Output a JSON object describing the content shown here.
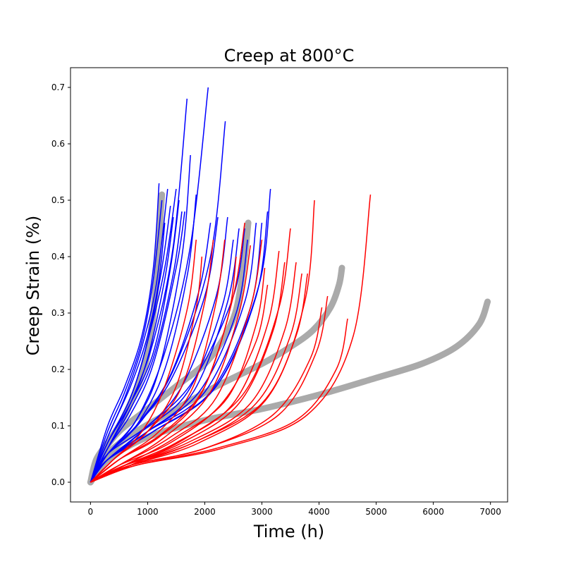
{
  "chart_data": {
    "type": "line",
    "title": "Creep at 800°C",
    "xlabel": "Time (h)",
    "ylabel": "Creep Strain (%)",
    "xlim": [
      -350,
      7300
    ],
    "ylim": [
      -0.035,
      0.735
    ],
    "xticks": [
      0,
      1000,
      2000,
      3000,
      4000,
      5000,
      6000,
      7000
    ],
    "yticks": [
      0.0,
      0.1,
      0.2,
      0.3,
      0.4,
      0.5,
      0.6,
      0.7
    ],
    "xtick_labels": [
      "0",
      "1000",
      "2000",
      "3000",
      "4000",
      "5000",
      "6000",
      "7000"
    ],
    "ytick_labels": [
      "0.0",
      "0.1",
      "0.2",
      "0.3",
      "0.4",
      "0.5",
      "0.6",
      "0.7"
    ],
    "grid": false,
    "legend": false,
    "colors": {
      "experimental": "#aaaaaa",
      "group_a": "#0000ff",
      "group_b": "#ff0000"
    },
    "experimental_series": [
      {
        "color": "#aaaaaa",
        "x": [
          0,
          100,
          300,
          500,
          700,
          900,
          1000,
          1100,
          1150,
          1200,
          1230,
          1250
        ],
        "y": [
          0,
          0.04,
          0.07,
          0.1,
          0.14,
          0.19,
          0.23,
          0.3,
          0.36,
          0.43,
          0.48,
          0.51
        ]
      },
      {
        "color": "#aaaaaa",
        "x": [
          0,
          200,
          500,
          1000,
          1500,
          2000,
          2300,
          2500,
          2600,
          2700,
          2760
        ],
        "y": [
          0,
          0.05,
          0.09,
          0.13,
          0.17,
          0.21,
          0.25,
          0.29,
          0.33,
          0.4,
          0.46
        ]
      },
      {
        "color": "#aaaaaa",
        "x": [
          0,
          300,
          800,
          1500,
          2200,
          3000,
          3500,
          3900,
          4200,
          4350,
          4400
        ],
        "y": [
          0,
          0.05,
          0.09,
          0.13,
          0.17,
          0.21,
          0.24,
          0.27,
          0.31,
          0.35,
          0.38
        ]
      },
      {
        "color": "#aaaaaa",
        "x": [
          0,
          300,
          1000,
          2000,
          3000,
          4000,
          5000,
          5800,
          6400,
          6800,
          6950
        ],
        "y": [
          0,
          0.04,
          0.08,
          0.11,
          0.13,
          0.155,
          0.185,
          0.21,
          0.24,
          0.28,
          0.32
        ]
      }
    ],
    "series": [
      {
        "color": "#0000ff",
        "x": [
          0,
          300,
          600,
          900,
          1100,
          1200
        ],
        "y": [
          0,
          0.1,
          0.17,
          0.26,
          0.38,
          0.53
        ]
      },
      {
        "color": "#0000ff",
        "x": [
          0,
          300,
          600,
          900,
          1100,
          1250
        ],
        "y": [
          0,
          0.09,
          0.16,
          0.25,
          0.36,
          0.5
        ]
      },
      {
        "color": "#0000ff",
        "x": [
          0,
          300,
          600,
          900,
          1150,
          1350
        ],
        "y": [
          0,
          0.08,
          0.15,
          0.24,
          0.35,
          0.52
        ]
      },
      {
        "color": "#0000ff",
        "x": [
          0,
          300,
          700,
          1000,
          1200,
          1300
        ],
        "y": [
          0,
          0.08,
          0.17,
          0.26,
          0.36,
          0.46
        ]
      },
      {
        "color": "#0000ff",
        "x": [
          0,
          300,
          700,
          1000,
          1250,
          1400
        ],
        "y": [
          0,
          0.07,
          0.15,
          0.25,
          0.38,
          0.49
        ]
      },
      {
        "color": "#0000ff",
        "x": [
          0,
          300,
          700,
          1000,
          1300,
          1450
        ],
        "y": [
          0,
          0.07,
          0.14,
          0.22,
          0.36,
          0.47
        ]
      },
      {
        "color": "#0000ff",
        "x": [
          0,
          300,
          700,
          1100,
          1400,
          1550
        ],
        "y": [
          0,
          0.07,
          0.14,
          0.23,
          0.38,
          0.5
        ]
      },
      {
        "color": "#0000ff",
        "x": [
          0,
          300,
          700,
          1100,
          1450,
          1600
        ],
        "y": [
          0,
          0.06,
          0.13,
          0.22,
          0.37,
          0.48
        ]
      },
      {
        "color": "#0000ff",
        "x": [
          0,
          300,
          700,
          1100,
          1500,
          1650
        ],
        "y": [
          0,
          0.06,
          0.12,
          0.21,
          0.38,
          0.48
        ]
      },
      {
        "color": "#0000ff",
        "x": [
          0,
          300,
          700,
          1100,
          1450,
          1690
        ],
        "y": [
          0,
          0.06,
          0.14,
          0.25,
          0.42,
          0.68
        ]
      },
      {
        "color": "#0000ff",
        "x": [
          0,
          300,
          800,
          1200,
          1600,
          1750
        ],
        "y": [
          0,
          0.05,
          0.11,
          0.2,
          0.4,
          0.58
        ]
      },
      {
        "color": "#0000ff",
        "x": [
          0,
          300,
          800,
          1300,
          1700,
          1850
        ],
        "y": [
          0,
          0.05,
          0.1,
          0.2,
          0.37,
          0.51
        ]
      },
      {
        "color": "#0000ff",
        "x": [
          0,
          300,
          800,
          1300,
          1750,
          2060
        ],
        "y": [
          0,
          0.05,
          0.11,
          0.23,
          0.42,
          0.7
        ]
      },
      {
        "color": "#0000ff",
        "x": [
          0,
          300,
          800,
          1400,
          1900,
          2100
        ],
        "y": [
          0,
          0.05,
          0.1,
          0.19,
          0.34,
          0.46
        ]
      },
      {
        "color": "#0000ff",
        "x": [
          0,
          300,
          800,
          1400,
          2000,
          2230
        ],
        "y": [
          0,
          0.05,
          0.1,
          0.18,
          0.33,
          0.47
        ]
      },
      {
        "color": "#0000ff",
        "x": [
          0,
          300,
          900,
          1500,
          2100,
          2360
        ],
        "y": [
          0,
          0.05,
          0.11,
          0.21,
          0.4,
          0.64
        ]
      },
      {
        "color": "#0000ff",
        "x": [
          0,
          300,
          900,
          1600,
          2200,
          2400
        ],
        "y": [
          0,
          0.04,
          0.09,
          0.17,
          0.33,
          0.47
        ]
      },
      {
        "color": "#0000ff",
        "x": [
          0,
          300,
          900,
          1700,
          2300,
          2500
        ],
        "y": [
          0,
          0.04,
          0.09,
          0.16,
          0.31,
          0.43
        ]
      },
      {
        "color": "#0000ff",
        "x": [
          0,
          300,
          1000,
          1800,
          2400,
          2600
        ],
        "y": [
          0,
          0.04,
          0.09,
          0.16,
          0.32,
          0.45
        ]
      },
      {
        "color": "#0000ff",
        "x": [
          0,
          300,
          1000,
          1900,
          2550,
          2750
        ],
        "y": [
          0,
          0.04,
          0.09,
          0.16,
          0.3,
          0.43
        ]
      },
      {
        "color": "#0000ff",
        "x": [
          0,
          300,
          1000,
          2000,
          2700,
          2900
        ],
        "y": [
          0,
          0.04,
          0.09,
          0.16,
          0.32,
          0.46
        ]
      },
      {
        "color": "#0000ff",
        "x": [
          0,
          300,
          1100,
          2100,
          2800,
          3000
        ],
        "y": [
          0,
          0.04,
          0.09,
          0.16,
          0.31,
          0.46
        ]
      },
      {
        "color": "#0000ff",
        "x": [
          0,
          300,
          1100,
          2200,
          2900,
          3100
        ],
        "y": [
          0,
          0.04,
          0.09,
          0.17,
          0.33,
          0.48
        ]
      },
      {
        "color": "#0000ff",
        "x": [
          0,
          300,
          1100,
          2200,
          2950,
          3150
        ],
        "y": [
          0,
          0.04,
          0.09,
          0.17,
          0.35,
          0.52
        ]
      },
      {
        "color": "#0000ff",
        "x": [
          0,
          300,
          1000,
          1800,
          2500,
          2700
        ],
        "y": [
          0,
          0.05,
          0.1,
          0.18,
          0.33,
          0.45
        ]
      },
      {
        "color": "#0000ff",
        "x": [
          0,
          300,
          700,
          1000,
          1300,
          1500
        ],
        "y": [
          0,
          0.07,
          0.15,
          0.25,
          0.38,
          0.52
        ]
      },
      {
        "color": "#ff0000",
        "x": [
          0,
          400,
          900,
          1300,
          1700,
          1850
        ],
        "y": [
          0,
          0.04,
          0.09,
          0.17,
          0.31,
          0.43
        ]
      },
      {
        "color": "#ff0000",
        "x": [
          0,
          400,
          1000,
          1500,
          1850,
          1950
        ],
        "y": [
          0,
          0.04,
          0.09,
          0.17,
          0.31,
          0.4
        ]
      },
      {
        "color": "#ff0000",
        "x": [
          0,
          400,
          1000,
          1600,
          2000,
          2150
        ],
        "y": [
          0,
          0.04,
          0.09,
          0.17,
          0.32,
          0.43
        ]
      },
      {
        "color": "#ff0000",
        "x": [
          0,
          500,
          1200,
          1800,
          2200,
          2350
        ],
        "y": [
          0,
          0.04,
          0.09,
          0.17,
          0.32,
          0.43
        ]
      },
      {
        "color": "#ff0000",
        "x": [
          0,
          500,
          1200,
          1900,
          2400,
          2550
        ],
        "y": [
          0,
          0.04,
          0.08,
          0.15,
          0.29,
          0.4
        ]
      },
      {
        "color": "#ff0000",
        "x": [
          0,
          500,
          1300,
          2100,
          2600,
          2800
        ],
        "y": [
          0,
          0.03,
          0.08,
          0.16,
          0.3,
          0.42
        ]
      },
      {
        "color": "#ff0000",
        "x": [
          0,
          500,
          1400,
          2200,
          2800,
          3000
        ],
        "y": [
          0,
          0.03,
          0.08,
          0.15,
          0.31,
          0.43
        ]
      },
      {
        "color": "#ff0000",
        "x": [
          0,
          500,
          1400,
          2300,
          2900,
          3100
        ],
        "y": [
          0,
          0.03,
          0.07,
          0.14,
          0.25,
          0.35
        ]
      },
      {
        "color": "#ff0000",
        "x": [
          0,
          600,
          1500,
          2500,
          3100,
          3300
        ],
        "y": [
          0,
          0.03,
          0.07,
          0.14,
          0.28,
          0.41
        ]
      },
      {
        "color": "#ff0000",
        "x": [
          0,
          600,
          1600,
          2600,
          3200,
          3400
        ],
        "y": [
          0,
          0.03,
          0.07,
          0.14,
          0.27,
          0.39
        ]
      },
      {
        "color": "#ff0000",
        "x": [
          0,
          600,
          1700,
          2800,
          3400,
          3600
        ],
        "y": [
          0,
          0.03,
          0.07,
          0.14,
          0.27,
          0.39
        ]
      },
      {
        "color": "#ff0000",
        "x": [
          0,
          600,
          1800,
          2900,
          3500,
          3700
        ],
        "y": [
          0,
          0.03,
          0.07,
          0.14,
          0.26,
          0.37
        ]
      },
      {
        "color": "#ff0000",
        "x": [
          0,
          700,
          1800,
          3000,
          3600,
          3800
        ],
        "y": [
          0,
          0.03,
          0.07,
          0.14,
          0.26,
          0.37
        ]
      },
      {
        "color": "#ff0000",
        "x": [
          0,
          700,
          1900,
          3100,
          3750,
          3920
        ],
        "y": [
          0,
          0.03,
          0.07,
          0.15,
          0.32,
          0.5
        ]
      },
      {
        "color": "#ff0000",
        "x": [
          0,
          700,
          2000,
          3200,
          3850,
          4050
        ],
        "y": [
          0,
          0.03,
          0.06,
          0.12,
          0.22,
          0.31
        ]
      },
      {
        "color": "#ff0000",
        "x": [
          0,
          700,
          2000,
          3300,
          3950,
          4150
        ],
        "y": [
          0,
          0.03,
          0.06,
          0.12,
          0.23,
          0.33
        ]
      },
      {
        "color": "#ff0000",
        "x": [
          0,
          800,
          2200,
          3600,
          4300,
          4500
        ],
        "y": [
          0,
          0.03,
          0.06,
          0.11,
          0.2,
          0.29
        ]
      },
      {
        "color": "#ff0000",
        "x": [
          0,
          800,
          2300,
          3800,
          4600,
          4900
        ],
        "y": [
          0,
          0.03,
          0.06,
          0.12,
          0.26,
          0.51
        ]
      },
      {
        "color": "#ff0000",
        "x": [
          0,
          500,
          1300,
          2000,
          2500,
          2700
        ],
        "y": [
          0,
          0.04,
          0.09,
          0.17,
          0.33,
          0.46
        ]
      },
      {
        "color": "#ff0000",
        "x": [
          0,
          600,
          1500,
          2400,
          2900,
          3050
        ],
        "y": [
          0,
          0.03,
          0.08,
          0.15,
          0.28,
          0.38
        ]
      },
      {
        "color": "#ff0000",
        "x": [
          0,
          700,
          1700,
          2700,
          3300,
          3500
        ],
        "y": [
          0,
          0.03,
          0.08,
          0.16,
          0.31,
          0.45
        ]
      }
    ]
  }
}
